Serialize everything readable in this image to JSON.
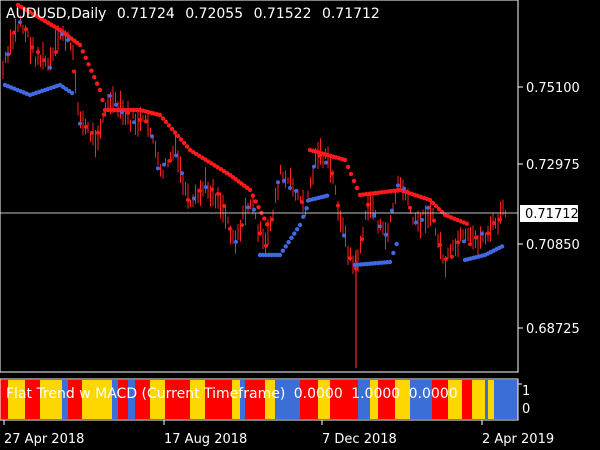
{
  "header": {
    "symbol": "AUDUSD,Daily",
    "open": "0.71724",
    "high": "0.72055",
    "low": "0.71522",
    "close": "0.71712"
  },
  "price_axis": {
    "ticks": [
      "0.75100",
      "0.72975",
      "0.70850",
      "0.68725"
    ],
    "current_price": "0.71712",
    "range": [
      0.668,
      0.7715
    ]
  },
  "time_axis": {
    "labels": [
      "27 Apr 2018",
      "17 Aug 2018",
      "7 Dec 2018",
      "2 Apr 2019"
    ]
  },
  "indicator": {
    "name": "Flat Trend w MACD (Current Timeframe)",
    "values": [
      "0.0000",
      "1.0000",
      "0.0000"
    ],
    "axis_top": "1",
    "axis_bottom": "0",
    "colors": {
      "red": "#ff0000",
      "yellow": "#ffd700",
      "blue": "#3c6ed7"
    }
  },
  "colors": {
    "background": "#000000",
    "axis": "#ffffff",
    "bars": "#ff0000",
    "trend_up": "#4169e1",
    "trend_down": "#ff0000"
  }
}
